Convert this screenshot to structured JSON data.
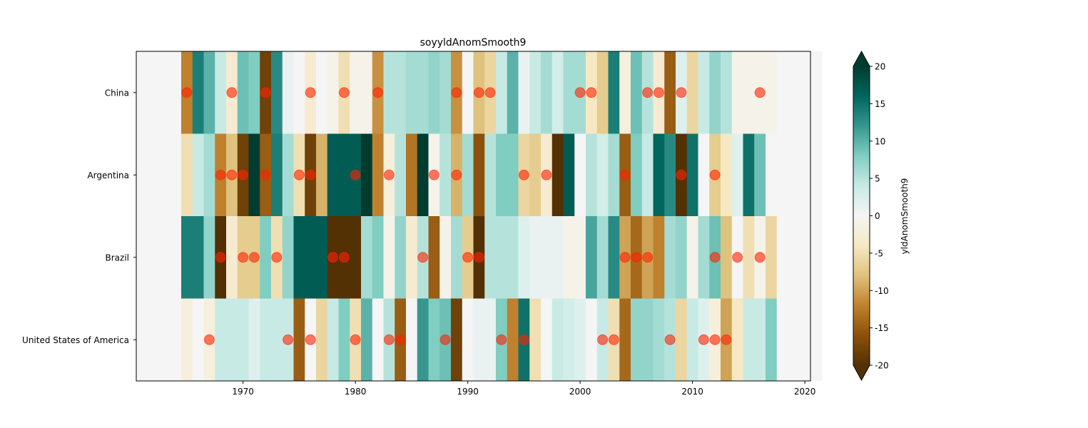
{
  "chart_data": {
    "type": "heatmap",
    "title": "soyyldAnomSmooth9",
    "xlabel": "",
    "ylabel": "",
    "xlim": [
      1960.5,
      2020.5
    ],
    "x_start": 1961,
    "x_ticks": [
      1970,
      1980,
      1990,
      2000,
      2010,
      2020
    ],
    "rows": [
      "China",
      "Argentina",
      "Brazil",
      "United States of America"
    ],
    "values": [
      [
        0,
        0,
        0,
        0,
        -12,
        14,
        10,
        4,
        -3,
        9,
        8,
        -18,
        13,
        1,
        0,
        -3,
        0,
        -1,
        -5,
        -1,
        -1,
        -11,
        5,
        5,
        6,
        6,
        7,
        6,
        -11,
        0,
        -8,
        -6,
        4,
        10,
        1,
        4,
        6,
        3,
        6,
        6,
        -4,
        -7,
        14,
        -2,
        9,
        5,
        -3,
        -15,
        2,
        -6,
        4,
        7,
        5,
        -1,
        -1,
        -1,
        -1,
        0,
        0,
        0,
        0
      ],
      [
        0,
        0,
        0,
        0,
        -5,
        4,
        6,
        -12,
        -8,
        -18,
        20,
        -15,
        14,
        6,
        -5,
        -18,
        -9,
        17,
        17,
        17,
        20,
        -12,
        -2,
        5,
        -13,
        20,
        -1,
        5,
        -9,
        6,
        -16,
        5,
        8,
        8,
        -6,
        -7,
        -3,
        -20,
        17,
        0,
        5,
        3,
        6,
        -15,
        8,
        4,
        16,
        13,
        -20,
        15,
        0,
        -7,
        -4,
        2,
        15,
        9,
        0,
        0,
        0,
        0,
        0
      ],
      [
        0,
        0,
        0,
        0,
        14,
        14,
        7,
        -20,
        -3,
        -7,
        -7,
        8,
        -5,
        7,
        17,
        17,
        17,
        -20,
        -20,
        -20,
        6,
        8,
        -1,
        7,
        -3,
        5,
        -15,
        -1,
        6,
        -7,
        -20,
        5,
        5,
        5,
        2,
        1,
        1,
        1,
        -1,
        -1,
        11,
        6,
        13,
        -10,
        -14,
        -10,
        -12,
        6,
        7,
        -1,
        6,
        9,
        -8,
        0,
        -5,
        -1,
        -6,
        0,
        0,
        0,
        0
      ],
      [
        0,
        0,
        0,
        0,
        -2,
        0,
        -2,
        4,
        4,
        4,
        2,
        4,
        4,
        4,
        -15,
        0,
        -6,
        4,
        8,
        -5,
        10,
        0,
        5,
        -15,
        0,
        12,
        8,
        9,
        -18,
        0,
        1,
        1,
        8,
        -12,
        15,
        -5,
        0,
        4,
        3,
        2,
        0,
        4,
        -5,
        -14,
        7,
        7,
        6,
        5,
        -6,
        4,
        2,
        -2,
        -10,
        -4,
        4,
        4,
        8,
        0,
        0,
        0,
        0
      ]
    ],
    "color_scale": {
      "vmin": -20,
      "vmax": 20,
      "stops": [
        "#543005",
        "#8c510a",
        "#bf812d",
        "#dfc27d",
        "#f6e8c3",
        "#f5f5f5",
        "#c7eae5",
        "#80cdc1",
        "#35978f",
        "#01665e",
        "#003c30"
      ],
      "extend": "both"
    },
    "colorbar_label": "yldAnomSmooth9",
    "colorbar_ticks": [
      -20,
      -15,
      -10,
      -5,
      0,
      5,
      10,
      15,
      20
    ],
    "markers": {
      "color": "#ff2200",
      "China": [
        1965,
        1969,
        1972,
        1976,
        1979,
        1982,
        1989,
        1991,
        1992,
        2000,
        2001,
        2006,
        2007,
        2009,
        2016
      ],
      "Argentina": [
        1968,
        1969,
        1970,
        1972,
        1975,
        1976,
        1980,
        1983,
        1987,
        1989,
        1995,
        1997,
        2004,
        2009,
        2012
      ],
      "Brazil": [
        1968,
        1970,
        1971,
        1973,
        1978,
        1979,
        1986,
        1990,
        1991,
        2004,
        2005,
        2006,
        2012,
        2014,
        2016
      ],
      "United States of America": [
        1967,
        1974,
        1976,
        1980,
        1983,
        1984,
        1988,
        1993,
        1995,
        2002,
        2003,
        2008,
        2011,
        2012,
        2013
      ]
    }
  }
}
